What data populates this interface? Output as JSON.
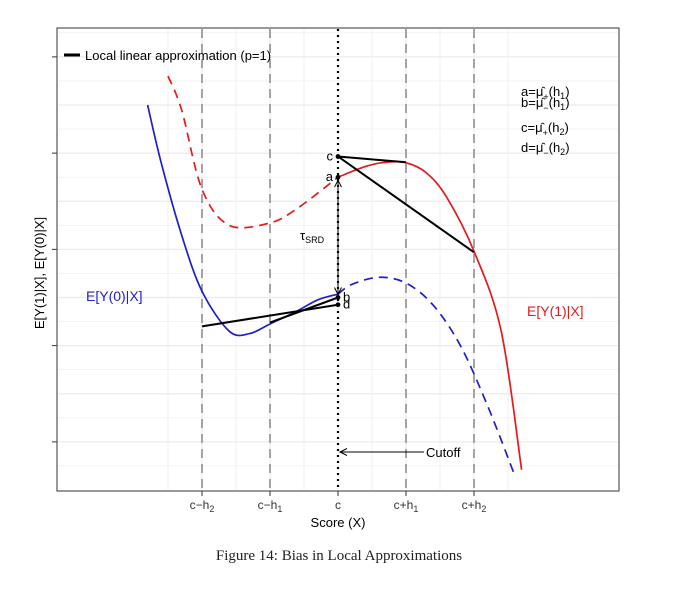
{
  "caption": "Figure 14: Bias in Local Approximations",
  "chart_data": {
    "type": "line",
    "title": "",
    "xlabel": "Score (X)",
    "ylabel": "E[Y(1)|X], E[Y(0)|X]",
    "grid": true,
    "legend": {
      "placement": "top-left",
      "entries": [
        "Local linear approximation (p=1)"
      ]
    },
    "x_ticks": [
      {
        "x": -2,
        "label": "c−h",
        "sub": "2"
      },
      {
        "x": -1,
        "label": "c−h",
        "sub": "1"
      },
      {
        "x": 0,
        "label": "c",
        "sub": ""
      },
      {
        "x": 1,
        "label": "c+h",
        "sub": "1"
      },
      {
        "x": 2,
        "label": "c+h",
        "sub": "2"
      }
    ],
    "xlim": [
      -2.8,
      2.85
    ],
    "ylim": [
      0,
      9.6
    ],
    "cutoff_x": 0,
    "series": [
      {
        "name": "E[Y(1)|X]",
        "color": "#e41a1c",
        "observed": {
          "x": [
            0,
            0.4,
            0.7,
            1.0,
            1.3,
            1.6,
            2.0,
            2.4,
            2.7
          ],
          "y": [
            6.5,
            6.72,
            6.81,
            6.8,
            6.59,
            6.08,
            4.96,
            3.3,
            0.42
          ]
        },
        "counterfactual": {
          "x": [
            -2.5,
            -2.3,
            -2.0,
            -1.6,
            -1.0,
            -0.6,
            0
          ],
          "y": [
            8.6,
            7.9,
            6.25,
            5.5,
            5.55,
            5.85,
            6.5
          ]
        }
      },
      {
        "name": "E[Y(0)|X]",
        "color": "#1f1fcc",
        "observed": {
          "x": [
            -2.8,
            -2.6,
            -2.3,
            -2.0,
            -1.6,
            -1.3,
            -1.0,
            -0.6,
            -0.3,
            0
          ],
          "y": [
            8.0,
            6.8,
            5.3,
            4.13,
            3.3,
            3.25,
            3.45,
            3.72,
            3.95,
            4.07
          ]
        },
        "counterfactual": {
          "x": [
            0,
            0.2,
            0.6,
            1.0,
            1.4,
            1.8,
            2.2,
            2.6
          ],
          "y": [
            4.07,
            4.27,
            4.42,
            4.3,
            3.84,
            3.0,
            1.75,
            0.3
          ]
        }
      }
    ],
    "local_linear_lines": [
      {
        "x": [
          0,
          1
        ],
        "y": [
          6.93,
          6.81
        ]
      },
      {
        "x": [
          0,
          2
        ],
        "y": [
          6.93,
          4.94
        ]
      },
      {
        "x": [
          -1,
          0
        ],
        "y": [
          3.48,
          4.0
        ]
      },
      {
        "x": [
          -2,
          0
        ],
        "y": [
          3.4,
          3.85
        ]
      }
    ],
    "points": [
      {
        "label": "a",
        "x": 0,
        "y": 6.5
      },
      {
        "label": "b",
        "x": 0,
        "y": 4.0
      },
      {
        "label": "c",
        "x": 0,
        "y": 6.93
      },
      {
        "label": "d",
        "x": 0,
        "y": 3.85
      }
    ],
    "annotations": {
      "tau": {
        "main": "τ",
        "sub": "SRD"
      },
      "cutoff": "Cutoff",
      "series_labels": {
        "y1": "E[Y(1)|X]",
        "y0": "E[Y(0)|X]"
      },
      "definitions": [
        {
          "lhs": "a=",
          "mu": "μ̂",
          "sign": "+",
          "h": "h",
          "hsub": "1"
        },
        {
          "lhs": "b=",
          "mu": "μ̂",
          "sign": "−",
          "h": "h",
          "hsub": "1"
        },
        {
          "lhs": "c=",
          "mu": "μ̂",
          "sign": "+",
          "h": "h",
          "hsub": "2"
        },
        {
          "lhs": "d=",
          "mu": "μ̂",
          "sign": "−",
          "h": "h",
          "hsub": "2"
        }
      ]
    }
  }
}
